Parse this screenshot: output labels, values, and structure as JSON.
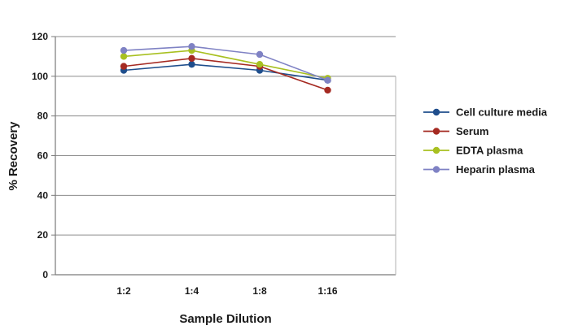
{
  "chart_data": {
    "type": "line",
    "title": "",
    "xlabel": "Sample Dilution",
    "ylabel": "% Recovery",
    "categories": [
      "1:2",
      "1:4",
      "1:8",
      "1:16"
    ],
    "ylim": [
      0,
      120
    ],
    "yticks": [
      0,
      20,
      40,
      60,
      80,
      100,
      120
    ],
    "grid": "horizontal",
    "legend_position": "right",
    "series": [
      {
        "name": "Cell culture media",
        "color": "#1f4e8c",
        "values": [
          103,
          106,
          103,
          98
        ]
      },
      {
        "name": "Serum",
        "color": "#a52a22",
        "values": [
          105,
          109,
          105,
          93
        ]
      },
      {
        "name": "EDTA plasma",
        "color": "#a8c020",
        "values": [
          110,
          113,
          106,
          99
        ]
      },
      {
        "name": "Heparin plasma",
        "color": "#7f82c4",
        "values": [
          113,
          115,
          111,
          98
        ]
      }
    ]
  }
}
